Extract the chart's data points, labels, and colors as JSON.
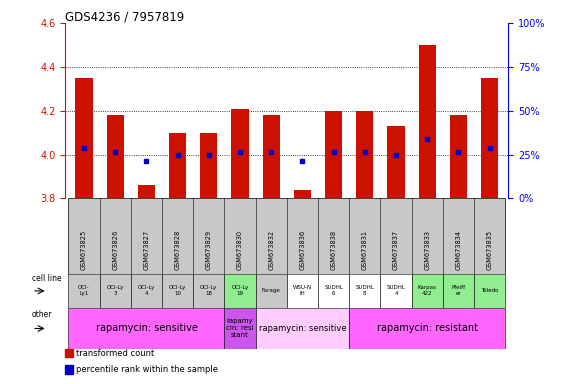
{
  "title": "GDS4236 / 7957819",
  "samples": [
    "GSM673825",
    "GSM673826",
    "GSM673827",
    "GSM673828",
    "GSM673829",
    "GSM673830",
    "GSM673832",
    "GSM673836",
    "GSM673838",
    "GSM673831",
    "GSM673837",
    "GSM673833",
    "GSM673834",
    "GSM673835"
  ],
  "bar_values": [
    4.35,
    4.18,
    3.86,
    4.1,
    4.1,
    4.21,
    4.18,
    3.84,
    4.2,
    4.2,
    4.13,
    4.5,
    4.18,
    4.35
  ],
  "dot_values": [
    4.03,
    4.01,
    3.97,
    4.0,
    4.0,
    4.01,
    4.01,
    3.97,
    4.01,
    4.01,
    4.0,
    4.07,
    4.01,
    4.03
  ],
  "ylim": [
    3.8,
    4.6
  ],
  "yticks_left": [
    3.8,
    4.0,
    4.2,
    4.4,
    4.6
  ],
  "yticks_right_pct": [
    0,
    25,
    50,
    75,
    100
  ],
  "hlines": [
    4.0,
    4.2,
    4.4
  ],
  "bar_color": "#cc1100",
  "dot_color": "#0000cc",
  "cell_line_labels": [
    "OCI-\nLy1",
    "OCI-Ly\n3",
    "OCI-Ly\n4",
    "OCI-Ly\n10",
    "OCI-Ly\n18",
    "OCI-Ly\n19",
    "Farage",
    "WSU-N\nIH",
    "SUDHL\n6",
    "SUDHL\n8",
    "SUDHL\n4",
    "Karpas\n422",
    "Pfeiff\ner",
    "Toledo"
  ],
  "cell_line_bg": [
    "#c8c8c8",
    "#c8c8c8",
    "#c8c8c8",
    "#c8c8c8",
    "#c8c8c8",
    "#90ee90",
    "#c8c8c8",
    "#ffffff",
    "#ffffff",
    "#ffffff",
    "#ffffff",
    "#90ee90",
    "#90ee90",
    "#90ee90"
  ],
  "sample_name_bg": "#c8c8c8",
  "other_groups": [
    {
      "start": 0,
      "end": 5,
      "label": "rapamycin: sensitive",
      "color": "#ff66ff",
      "fontsize": 7
    },
    {
      "start": 5,
      "end": 6,
      "label": "rapamy\ncin: resi\nstant",
      "color": "#cc55ee",
      "fontsize": 5
    },
    {
      "start": 6,
      "end": 9,
      "label": "rapamycin: sensitive",
      "color": "#ffccff",
      "fontsize": 6
    },
    {
      "start": 9,
      "end": 14,
      "label": "rapamycin: resistant",
      "color": "#ff66ff",
      "fontsize": 7
    }
  ],
  "legend_items": [
    {
      "label": "transformed count",
      "color": "#cc1100"
    },
    {
      "label": "percentile rank within the sample",
      "color": "#0000cc"
    }
  ]
}
